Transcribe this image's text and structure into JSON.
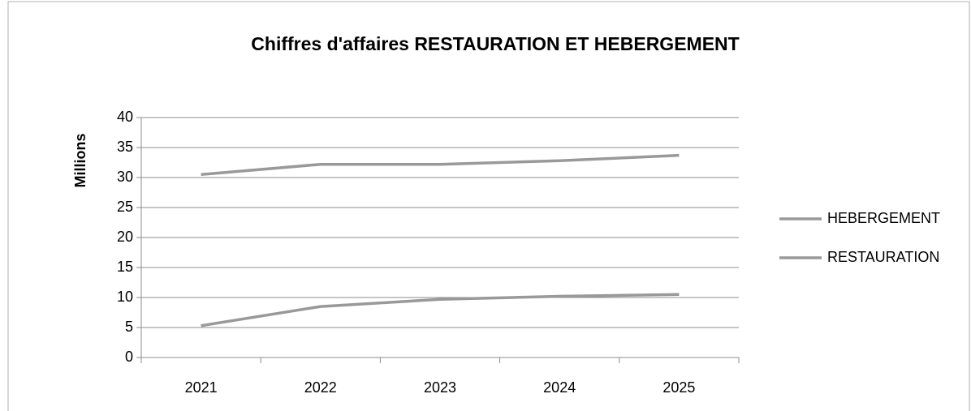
{
  "chart_data": {
    "type": "line",
    "title": "Chiffres d'affaires RESTAURATION ET HEBERGEMENT",
    "y_label": "Millions",
    "categories": [
      "2021",
      "2022",
      "2023",
      "2024",
      "2025"
    ],
    "series": [
      {
        "name": "HEBERGEMENT",
        "color": "#999999",
        "values": [
          30.5,
          32.2,
          32.2,
          32.8,
          33.7
        ]
      },
      {
        "name": "RESTAURATION",
        "color": "#999999",
        "values": [
          5.3,
          8.5,
          9.7,
          10.2,
          10.5
        ]
      }
    ],
    "ylim": [
      0,
      40
    ],
    "yticks": [
      0,
      5,
      10,
      15,
      20,
      25,
      30,
      35,
      40
    ],
    "grid": true,
    "legend": "right"
  }
}
